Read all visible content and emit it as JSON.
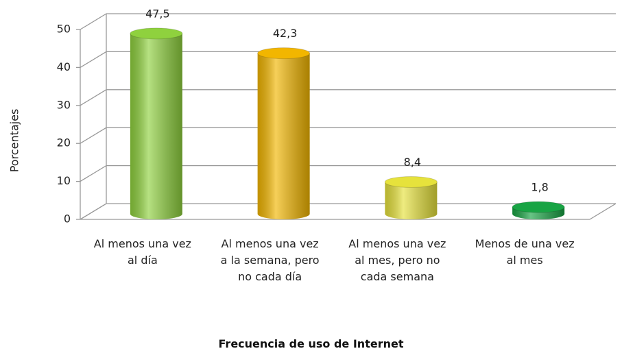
{
  "chart_data": {
    "type": "bar",
    "x_label": "Frecuencia de uso de Internet",
    "y_label": "Porcentajes",
    "categories": [
      "Al menos una vez al día",
      "Al menos una vez a la semana, pero no cada día",
      "Al menos una vez al mes, pero no cada semana",
      "Menos de una vez al mes"
    ],
    "values": [
      47.5,
      42.3,
      8.4,
      1.8
    ],
    "value_labels": [
      "47,5",
      "42,3",
      "8,4",
      "1,8"
    ],
    "colors": [
      "#8fd13e",
      "#f2b600",
      "#e6e23c",
      "#18a444"
    ],
    "ylim": [
      0,
      50
    ],
    "yticks": [
      0,
      10,
      20,
      30,
      40,
      50
    ],
    "grid": true
  }
}
